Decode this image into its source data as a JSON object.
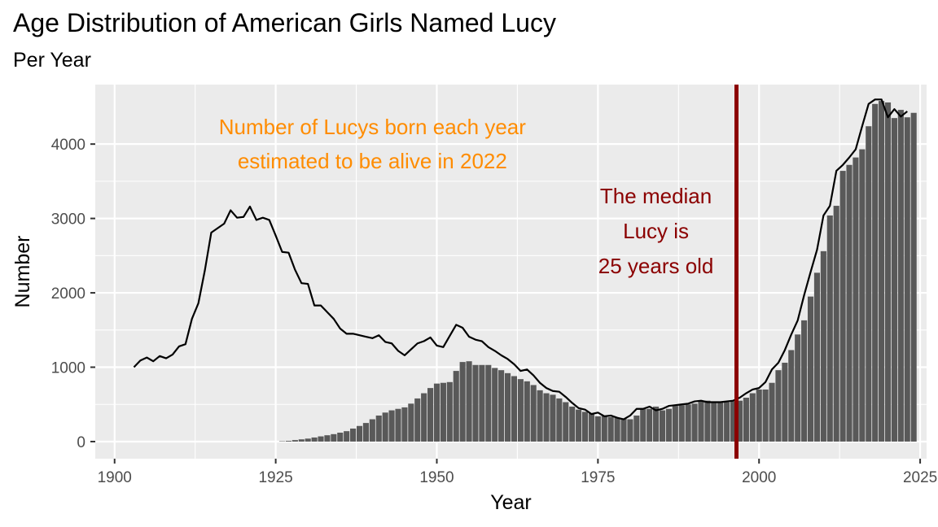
{
  "title": "Age Distribution of American Girls Named Lucy",
  "subtitle": "Per Year",
  "chart_data": {
    "type": "bar",
    "title": "Age Distribution of American Girls Named Lucy",
    "subtitle": "Per Year",
    "xlabel": "Year",
    "ylabel": "Number",
    "xlim": [
      1897,
      2026
    ],
    "ylim": [
      -230,
      4800
    ],
    "xticks": [
      1900,
      1925,
      1950,
      1975,
      2000,
      2025
    ],
    "yticks": [
      0,
      1000,
      2000,
      3000,
      4000
    ],
    "grid": true,
    "colors": {
      "panel": "#ebebeb",
      "grid": "#ffffff",
      "bars": "#595959",
      "line": "#000000",
      "median_line": "#8b0000",
      "annotation_orange": "#ff8c00",
      "annotation_red": "#8b0000"
    },
    "series": [
      {
        "type": "line",
        "x_start": 1903,
        "values": [
          1000,
          1090,
          1130,
          1080,
          1150,
          1120,
          1170,
          1280,
          1310,
          1650,
          1860,
          2300,
          2810,
          2870,
          2930,
          3110,
          3010,
          3020,
          3160,
          2980,
          3010,
          2980,
          2770,
          2550,
          2540,
          2310,
          2130,
          2120,
          1830,
          1830,
          1740,
          1650,
          1520,
          1450,
          1450,
          1430,
          1410,
          1390,
          1430,
          1340,
          1320,
          1220,
          1160,
          1240,
          1320,
          1350,
          1400,
          1290,
          1270,
          1420,
          1570,
          1530,
          1410,
          1370,
          1350,
          1270,
          1220,
          1160,
          1110,
          1040,
          950,
          970,
          890,
          790,
          720,
          680,
          670,
          600,
          520,
          450,
          430,
          370,
          390,
          340,
          350,
          320,
          300,
          350,
          440,
          440,
          470,
          420,
          440,
          480,
          490,
          500,
          510,
          540,
          550,
          530,
          530,
          530,
          540,
          550,
          590,
          650,
          700,
          720,
          800,
          970,
          1060,
          1230,
          1440,
          1630,
          1970,
          2280,
          2580,
          3040,
          3170,
          3640,
          3720,
          3820,
          3930,
          4240,
          4540,
          4600,
          4600,
          4360,
          4470,
          4370,
          4440
        ]
      },
      {
        "type": "bar",
        "x_start": 1926,
        "values": [
          5,
          10,
          20,
          30,
          40,
          55,
          70,
          85,
          100,
          120,
          140,
          175,
          210,
          250,
          300,
          350,
          390,
          420,
          440,
          460,
          510,
          580,
          650,
          720,
          780,
          790,
          800,
          950,
          1070,
          1080,
          1030,
          1030,
          1030,
          990,
          960,
          920,
          880,
          840,
          810,
          760,
          690,
          650,
          630,
          580,
          530,
          470,
          430,
          400,
          380,
          340,
          350,
          330,
          320,
          310,
          300,
          350,
          440,
          440,
          470,
          420,
          440,
          480,
          490,
          500,
          510,
          540,
          550,
          530,
          530,
          530,
          540,
          550,
          590,
          650,
          700,
          700,
          790,
          960,
          1060,
          1230,
          1440,
          1630,
          1950,
          2270,
          2560,
          3040,
          3170,
          3640,
          3720,
          3820,
          3930,
          4240,
          4540,
          4580,
          4560,
          4350,
          4460,
          4360,
          4420
        ]
      }
    ],
    "median": {
      "year": 1996.5,
      "label": "The median Lucy is 25 years old"
    },
    "annotations": [
      {
        "lines": [
          "Number of Lucys born each year",
          "estimated to be alive in 2022"
        ],
        "x": 1940,
        "y": 4000,
        "color": "#ff8c00"
      },
      {
        "lines": [
          "The median",
          "Lucy is",
          "25 years old"
        ],
        "x": 1984,
        "y": 2830,
        "color": "#8b0000"
      }
    ]
  }
}
